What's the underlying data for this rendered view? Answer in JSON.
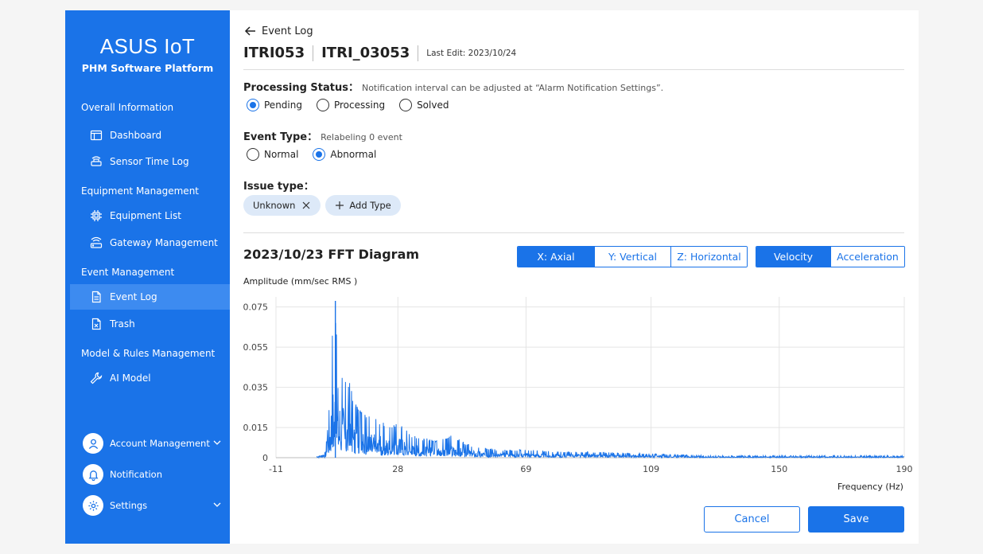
{
  "sidebar": {
    "logo": "ASUS IoT",
    "subtitle": "PHM Software Platform",
    "sections": [
      {
        "title": "Overall Information",
        "items": [
          {
            "label": "Dashboard",
            "icon": "dashboard-icon"
          },
          {
            "label": "Sensor Time Log",
            "icon": "sensor-icon"
          }
        ]
      },
      {
        "title": "Equipment Management",
        "items": [
          {
            "label": "Equipment List",
            "icon": "chip-icon"
          },
          {
            "label": "Gateway Management",
            "icon": "gateway-icon"
          }
        ]
      },
      {
        "title": "Event Management",
        "items": [
          {
            "label": "Event Log",
            "icon": "document-icon",
            "active": true
          },
          {
            "label": "Trash",
            "icon": "trash-document-icon"
          }
        ]
      },
      {
        "title": "Model & Rules Management",
        "items": [
          {
            "label": "AI Model",
            "icon": "wrench-icon"
          }
        ]
      }
    ],
    "bottom": {
      "account": "Account Management",
      "notification": "Notification",
      "settings": "Settings"
    }
  },
  "header": {
    "back_label": "Event Log",
    "device_id": "ITRI053",
    "device_name": "ITRI_03053",
    "last_edit": "Last Edit: 2023/10/24"
  },
  "processing": {
    "label": "Processing Status：",
    "hint": "Notification interval can be adjusted at “Alarm Notification Settings”.",
    "options": [
      "Pending",
      "Processing",
      "Solved"
    ],
    "selected": "Pending"
  },
  "event_type": {
    "label": "Event Type：",
    "hint": "Relabeling 0 event",
    "options": [
      "Normal",
      "Abnormal"
    ],
    "selected": "Abnormal"
  },
  "issue": {
    "label": "Issue type：",
    "chips": [
      "Unknown"
    ],
    "add_label": "Add Type"
  },
  "fft": {
    "title": "2023/10/23 FFT Diagram",
    "axis_tabs": [
      "X: Axial",
      "Y: Vertical",
      "Z: Horizontal"
    ],
    "axis_selected": "X: Axial",
    "mode_tabs": [
      "Velocity",
      "Acceleration"
    ],
    "mode_selected": "Velocity",
    "ylabel": "Amplitude (mm/sec RMS )",
    "xlabel": "Frequency (Hz)"
  },
  "chart_data": {
    "type": "line",
    "xlabel": "Frequency (Hz)",
    "ylabel": "Amplitude (mm/sec RMS )",
    "xlim": [
      -11,
      190
    ],
    "ylim": [
      0,
      0.08
    ],
    "x_ticks": [
      "-11",
      "28",
      "69",
      "109",
      "150",
      "190"
    ],
    "y_ticks": [
      "0",
      "0.015",
      "0.035",
      "0.055",
      "0.075"
    ],
    "grid": true,
    "series": [
      {
        "color": "#1a73e8",
        "peaks": [
          {
            "x": 3,
            "y": 0.001
          },
          {
            "x": 5,
            "y": 0.003
          },
          {
            "x": 5.7,
            "y": 0.035
          },
          {
            "x": 6.5,
            "y": 0.052
          },
          {
            "x": 8,
            "y": 0.078
          },
          {
            "x": 9,
            "y": 0.06
          },
          {
            "x": 10,
            "y": 0.045
          },
          {
            "x": 12,
            "y": 0.04
          },
          {
            "x": 14,
            "y": 0.03
          },
          {
            "x": 17,
            "y": 0.022
          },
          {
            "x": 20,
            "y": 0.02
          },
          {
            "x": 24,
            "y": 0.017
          },
          {
            "x": 28,
            "y": 0.018
          },
          {
            "x": 33,
            "y": 0.011
          },
          {
            "x": 40,
            "y": 0.009
          },
          {
            "x": 45,
            "y": 0.011
          },
          {
            "x": 52,
            "y": 0.006
          },
          {
            "x": 60,
            "y": 0.004
          },
          {
            "x": 70,
            "y": 0.004
          },
          {
            "x": 80,
            "y": 0.003
          },
          {
            "x": 90,
            "y": 0.003
          },
          {
            "x": 110,
            "y": 0.002
          },
          {
            "x": 130,
            "y": 0.001
          },
          {
            "x": 150,
            "y": 0.001
          },
          {
            "x": 170,
            "y": 0.001
          },
          {
            "x": 190,
            "y": 0.001
          }
        ]
      }
    ]
  },
  "actions": {
    "cancel": "Cancel",
    "save": "Save"
  }
}
